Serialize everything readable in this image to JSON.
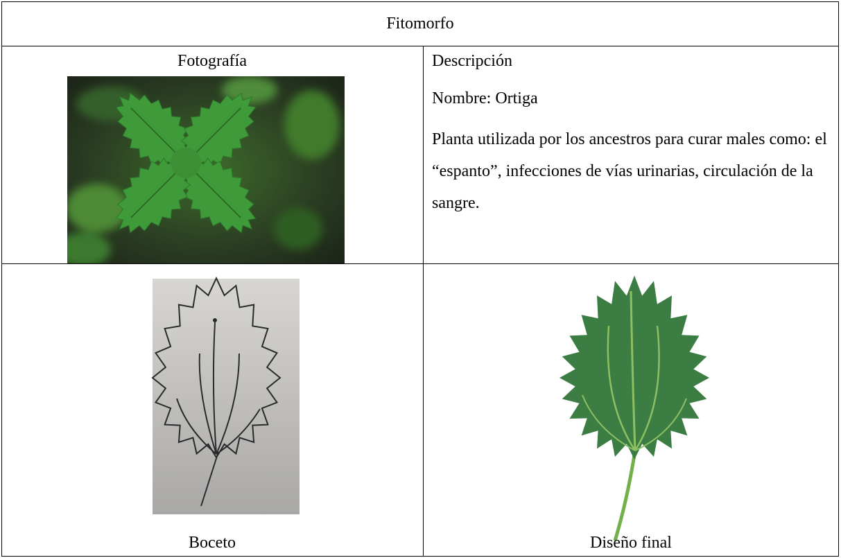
{
  "header": {
    "title": "Fitomorfo"
  },
  "photo": {
    "label": "Fotografía"
  },
  "description": {
    "heading": "Descripción",
    "name": "Nombre: Ortiga",
    "text": "Planta utilizada por los ancestros para curar males como: el “espanto”, infecciones de vías urinarias, circulación de la sangre."
  },
  "sketch": {
    "caption": "Boceto"
  },
  "final_design": {
    "caption": "Diseño final"
  }
}
